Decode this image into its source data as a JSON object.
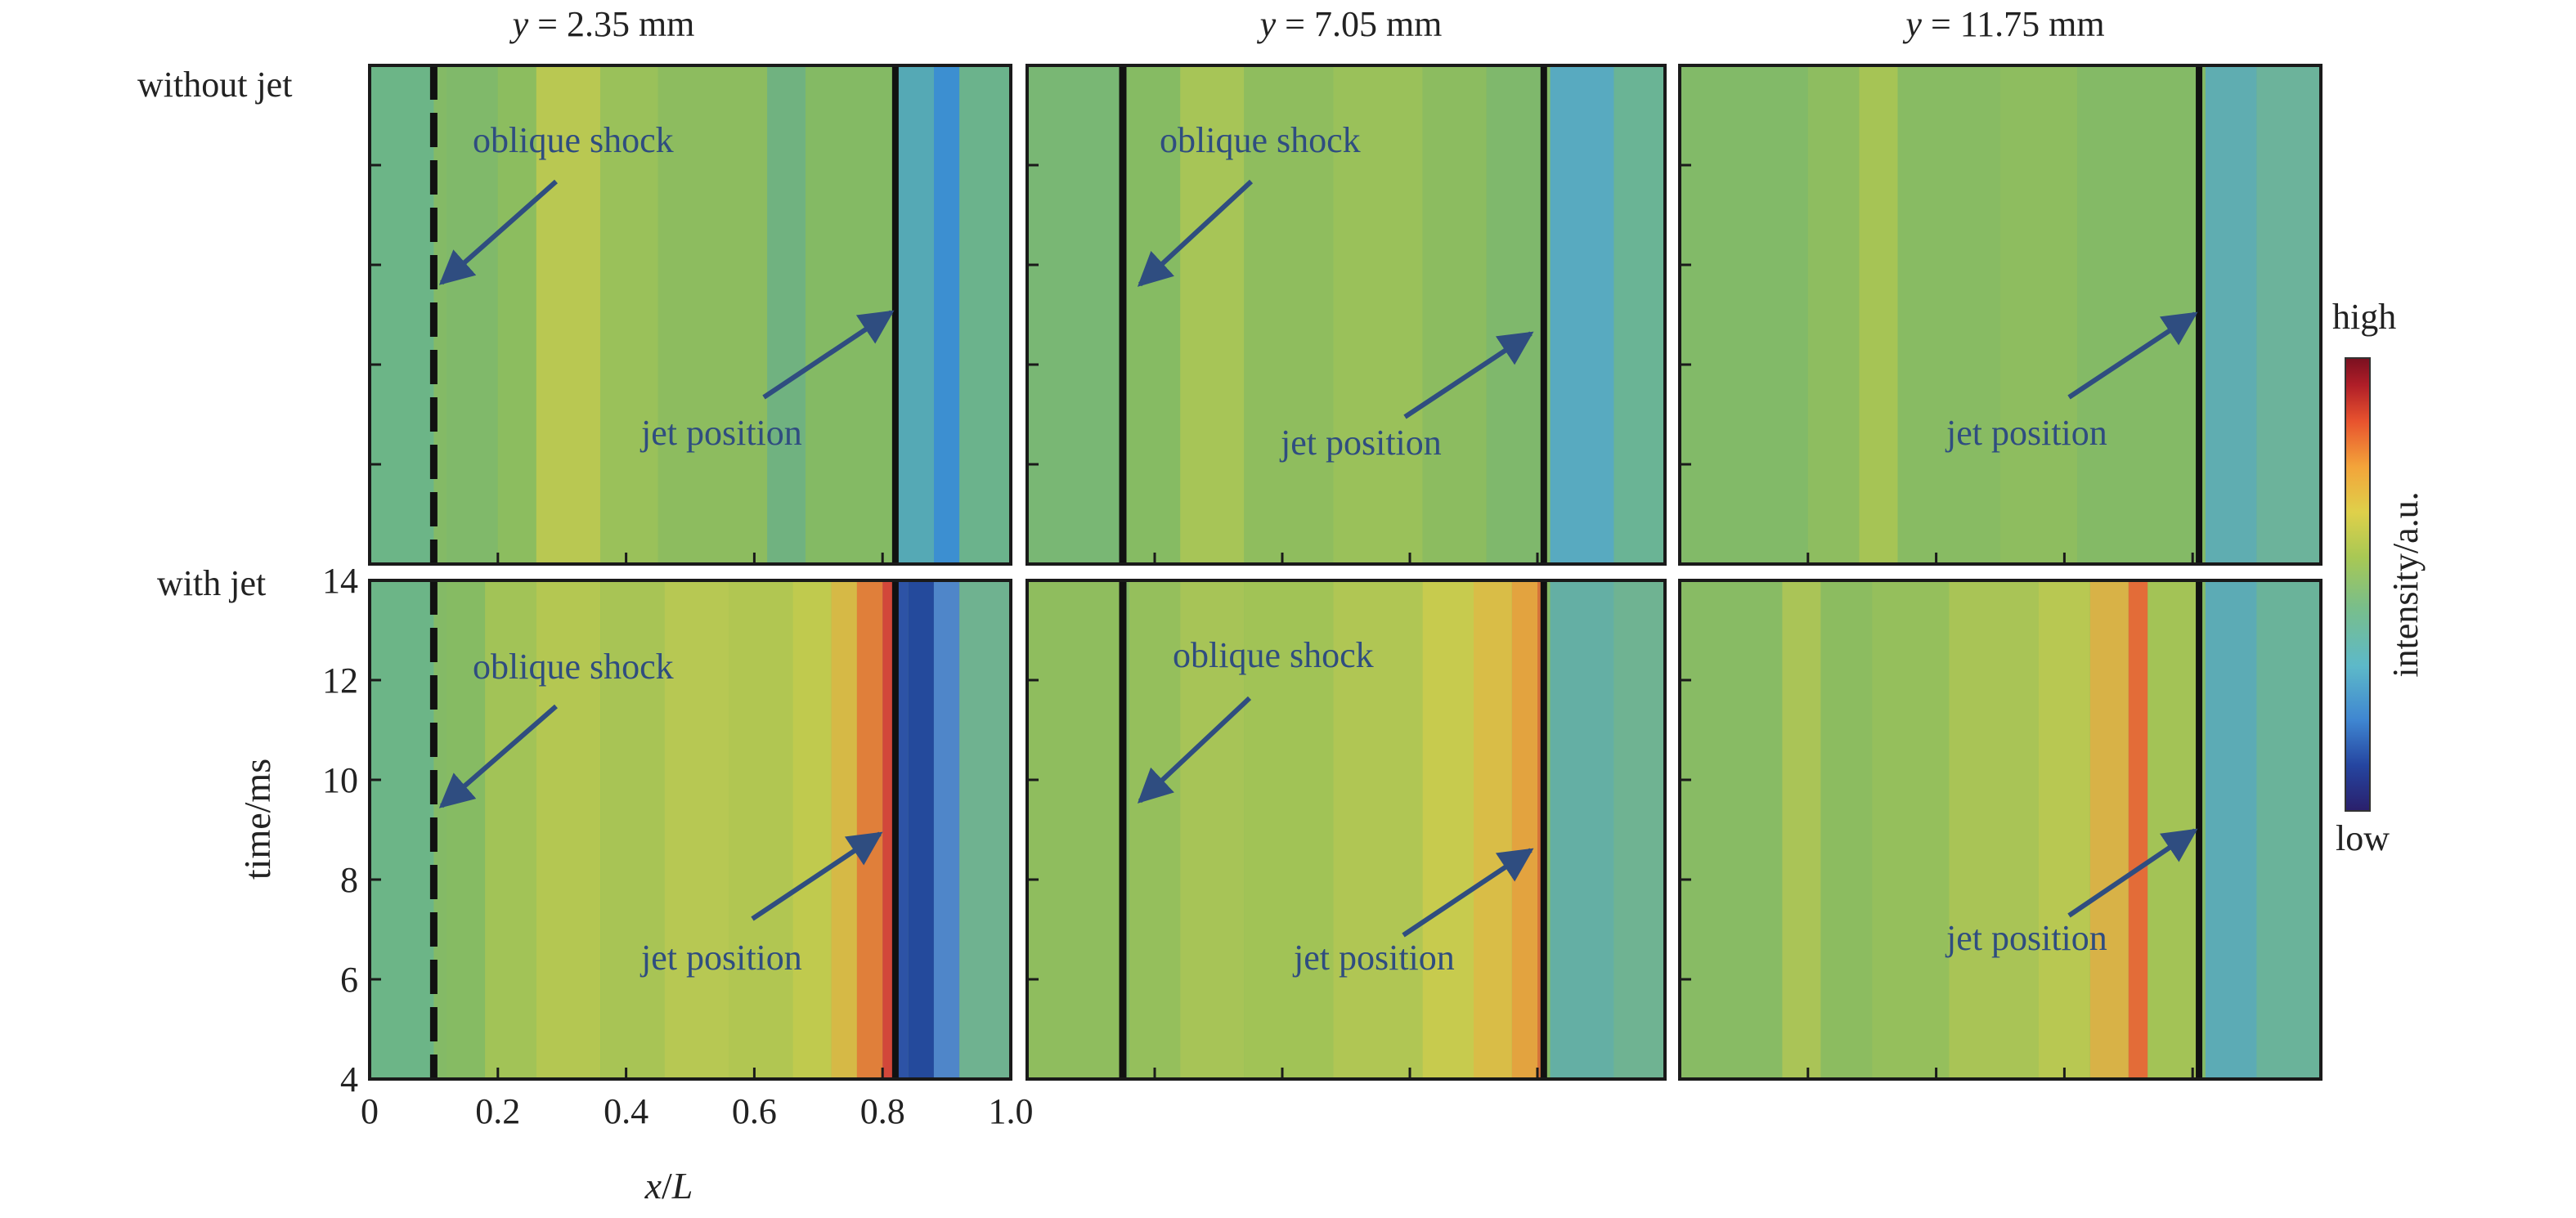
{
  "chart_data": {
    "type": "heatmap",
    "column_titles": [
      {
        "var": "y",
        "eq": " = ",
        "value": "2.35 mm"
      },
      {
        "var": "y",
        "eq": " = ",
        "value": "7.05 mm"
      },
      {
        "var": "y",
        "eq": " = ",
        "value": "11.75 mm"
      }
    ],
    "row_labels": [
      "without jet",
      "with jet"
    ],
    "xlabel": {
      "var": "x",
      "slash": "/",
      "den": "L"
    },
    "ylabel": "time/ms",
    "x_ticks": [
      "0",
      "0.2",
      "0.4",
      "0.6",
      "0.8",
      "1.0"
    ],
    "y_ticks": [
      "4",
      "6",
      "8",
      "10",
      "12",
      "14"
    ],
    "xlim": [
      0,
      1.0
    ],
    "ylim": [
      4,
      14
    ],
    "colorbar": {
      "label": "intensity/a.u.",
      "high_label": "high",
      "low_label": "low"
    },
    "annotations": {
      "oblique_shock": "oblique shock",
      "jet_position": "jet position"
    },
    "panels": [
      {
        "row": "without jet",
        "column": "y = 2.35 mm",
        "oblique_shock_x": 0.1,
        "oblique_shock_style": "dashed",
        "jet_position_x": 0.82,
        "bands": [
          [
            0.0,
            0.1,
            "#6cb587"
          ],
          [
            0.12,
            0.2,
            "#80b96a"
          ],
          [
            0.2,
            0.26,
            "#8cbd5f"
          ],
          [
            0.26,
            0.36,
            "#b9c852"
          ],
          [
            0.36,
            0.45,
            "#9ac15a"
          ],
          [
            0.45,
            0.62,
            "#8dbc5f"
          ],
          [
            0.62,
            0.68,
            "#70b280"
          ],
          [
            0.68,
            0.82,
            "#84ba64"
          ],
          [
            0.82,
            0.88,
            "#55a9b5"
          ],
          [
            0.88,
            0.92,
            "#3c8fd1"
          ],
          [
            0.92,
            1.0,
            "#6bb38c"
          ]
        ]
      },
      {
        "row": "without jet",
        "column": "y = 7.05 mm",
        "oblique_shock_x": 0.15,
        "oblique_shock_style": "solid",
        "jet_position_x": 0.81,
        "bands": [
          [
            0.0,
            0.15,
            "#79b774"
          ],
          [
            0.16,
            0.24,
            "#86bb63"
          ],
          [
            0.24,
            0.34,
            "#a7c557"
          ],
          [
            0.34,
            0.48,
            "#8fbd5e"
          ],
          [
            0.48,
            0.62,
            "#9ac15a"
          ],
          [
            0.62,
            0.72,
            "#8cbc60"
          ],
          [
            0.72,
            0.81,
            "#7fb86c"
          ],
          [
            0.82,
            0.92,
            "#58aac0"
          ],
          [
            0.92,
            1.0,
            "#6ab495"
          ]
        ]
      },
      {
        "row": "without jet",
        "column": "y = 11.75 mm",
        "oblique_shock_x": null,
        "oblique_shock_style": "none",
        "jet_position_x": 0.81,
        "bands": [
          [
            0.0,
            0.2,
            "#82ba68"
          ],
          [
            0.2,
            0.28,
            "#8ebd60"
          ],
          [
            0.28,
            0.34,
            "#a6c455"
          ],
          [
            0.34,
            0.5,
            "#88bb63"
          ],
          [
            0.5,
            0.62,
            "#8ebd5f"
          ],
          [
            0.62,
            0.81,
            "#84ba66"
          ],
          [
            0.82,
            0.9,
            "#5fadb1"
          ],
          [
            0.9,
            1.0,
            "#6cb39b"
          ]
        ]
      },
      {
        "row": "with jet",
        "column": "y = 2.35 mm",
        "oblique_shock_x": 0.1,
        "oblique_shock_style": "dashed",
        "jet_position_x": 0.82,
        "bands": [
          [
            0.0,
            0.1,
            "#6cb587"
          ],
          [
            0.12,
            0.18,
            "#86bb63"
          ],
          [
            0.18,
            0.26,
            "#a2c357"
          ],
          [
            0.26,
            0.36,
            "#b4c752"
          ],
          [
            0.36,
            0.46,
            "#a8c455"
          ],
          [
            0.46,
            0.56,
            "#b7c853"
          ],
          [
            0.56,
            0.66,
            "#b1c652"
          ],
          [
            0.66,
            0.72,
            "#c0ca4e"
          ],
          [
            0.72,
            0.76,
            "#d6b946"
          ],
          [
            0.76,
            0.8,
            "#e07f3a"
          ],
          [
            0.8,
            0.82,
            "#d2473a"
          ],
          [
            0.82,
            0.84,
            "#2d53a6"
          ],
          [
            0.84,
            0.88,
            "#244a9c"
          ],
          [
            0.88,
            0.92,
            "#4f86c9"
          ],
          [
            0.92,
            1.0,
            "#6fb290"
          ]
        ]
      },
      {
        "row": "with jet",
        "column": "y = 7.05 mm",
        "oblique_shock_x": 0.15,
        "oblique_shock_style": "solid",
        "jet_position_x": 0.81,
        "bands": [
          [
            0.0,
            0.15,
            "#8fbd5e"
          ],
          [
            0.16,
            0.24,
            "#95bf5c"
          ],
          [
            0.24,
            0.34,
            "#a7c457"
          ],
          [
            0.34,
            0.48,
            "#a1c356"
          ],
          [
            0.48,
            0.62,
            "#b0c654"
          ],
          [
            0.62,
            0.7,
            "#c7cb4e"
          ],
          [
            0.7,
            0.76,
            "#d9bd47"
          ],
          [
            0.76,
            0.8,
            "#e3a33f"
          ],
          [
            0.8,
            0.81,
            "#d6733a"
          ],
          [
            0.82,
            0.92,
            "#64afa4"
          ],
          [
            0.92,
            1.0,
            "#6fb392"
          ]
        ]
      },
      {
        "row": "with jet",
        "column": "y = 11.75 mm",
        "oblique_shock_x": null,
        "oblique_shock_style": "none",
        "jet_position_x": 0.81,
        "bands": [
          [
            0.0,
            0.16,
            "#88bb64"
          ],
          [
            0.16,
            0.22,
            "#aac457"
          ],
          [
            0.22,
            0.3,
            "#8cbc60"
          ],
          [
            0.3,
            0.42,
            "#95bf5c"
          ],
          [
            0.42,
            0.56,
            "#a9c456"
          ],
          [
            0.56,
            0.64,
            "#b8c852"
          ],
          [
            0.64,
            0.7,
            "#d8b247"
          ],
          [
            0.7,
            0.73,
            "#e36c38"
          ],
          [
            0.73,
            0.81,
            "#a3c356"
          ],
          [
            0.82,
            0.9,
            "#5cabb5"
          ],
          [
            0.9,
            1.0,
            "#6ab39a"
          ]
        ]
      }
    ],
    "colors": {
      "colormap": [
        "#2a1f6b",
        "#2545a0",
        "#3f86d1",
        "#5db9c9",
        "#79be8a",
        "#a8c854",
        "#dfd04a",
        "#f3a43a",
        "#e8532e",
        "#b01e28",
        "#7a1020"
      ],
      "frame": "#1a1a1a",
      "annotation": "#2f4d80"
    }
  }
}
